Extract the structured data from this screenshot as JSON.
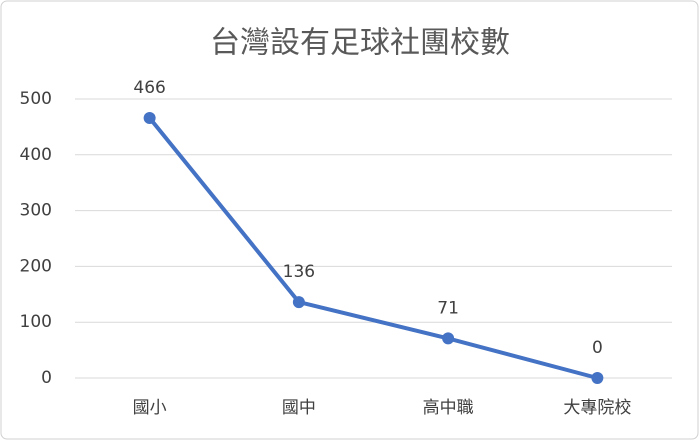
{
  "chart_data": {
    "type": "line",
    "title": "台灣設有足球社團校數",
    "categories": [
      "國小",
      "國中",
      "高中職",
      "大專院校"
    ],
    "series": [
      {
        "color": "#4472c4",
        "values": [
          466,
          136,
          71,
          0
        ]
      }
    ],
    "ylim": [
      0,
      500
    ],
    "yticks": [
      0,
      100,
      200,
      300,
      400,
      500
    ],
    "grid": true,
    "data_labels": true
  }
}
